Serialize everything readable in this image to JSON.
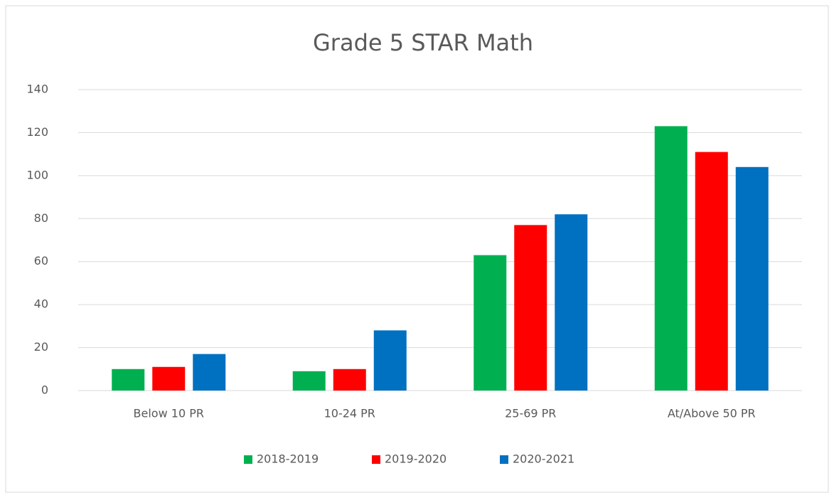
{
  "chart_data": {
    "type": "bar",
    "title": "Grade 5 STAR Math",
    "categories": [
      "Below 10 PR",
      "10-24 PR",
      "25-69 PR",
      "At/Above 50 PR"
    ],
    "series": [
      {
        "name": "2018-2019",
        "color": "#00b050",
        "values": [
          10,
          9,
          63,
          123
        ]
      },
      {
        "name": "2019-2020",
        "color": "#ff0000",
        "values": [
          11,
          10,
          77,
          111
        ]
      },
      {
        "name": "2020-2021",
        "color": "#0070c0",
        "values": [
          17,
          28,
          82,
          104
        ]
      }
    ],
    "ylim": [
      0,
      140
    ],
    "yticks": [
      0,
      20,
      40,
      60,
      80,
      100,
      120,
      140
    ],
    "grid": true,
    "legend": "bottom"
  }
}
